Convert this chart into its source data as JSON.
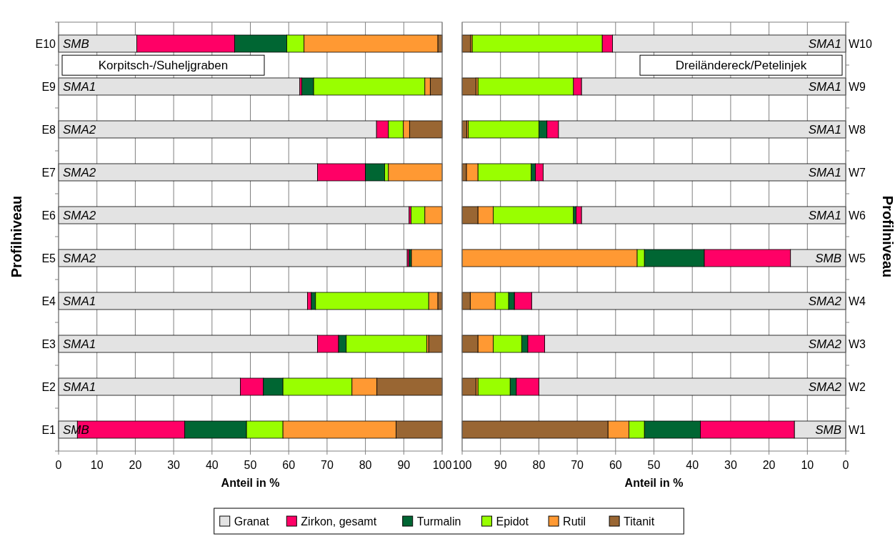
{
  "chart_data": [
    {
      "type": "bar",
      "orientation": "horizontal",
      "stacked": true,
      "categories": [
        "E10",
        "E9",
        "E8",
        "E7",
        "E6",
        "E5",
        "E4",
        "E3",
        "E2",
        "E1"
      ],
      "series": [
        {
          "name": "Granat",
          "color": "#e3e3e3",
          "values": [
            20.4,
            62.9,
            82.9,
            67.5,
            91.4,
            90.9,
            64.9,
            67.5,
            47.4,
            4.9
          ]
        },
        {
          "name": "Zirkon, gesamt",
          "color": "#ff0066",
          "values": [
            25.5,
            0.5,
            3.1,
            12.5,
            0.5,
            0.5,
            1.0,
            5.5,
            6.0,
            28.0
          ]
        },
        {
          "name": "Turmalin",
          "color": "#006633",
          "values": [
            13.6,
            3.1,
            0,
            5.0,
            0,
            0.6,
            1.1,
            2.0,
            5.1,
            16.1
          ]
        },
        {
          "name": "Epidot",
          "color": "#99ff00",
          "values": [
            4.5,
            29.0,
            3.9,
            1.0,
            3.6,
            0,
            29.5,
            21.0,
            18.0,
            9.5
          ]
        },
        {
          "name": "Rutil",
          "color": "#ff9933",
          "values": [
            34.9,
            1.4,
            1.6,
            14.0,
            4.5,
            8.0,
            2.4,
            0.5,
            6.5,
            29.5
          ]
        },
        {
          "name": "Titanit",
          "color": "#996633",
          "values": [
            1.1,
            3.1,
            8.5,
            0,
            0,
            0,
            1.1,
            3.5,
            17.0,
            12.0
          ]
        }
      ],
      "xlim": [
        0,
        100
      ],
      "xticks": [
        0,
        10,
        20,
        30,
        40,
        50,
        60,
        70,
        80,
        90,
        100
      ],
      "xlabel": "Anteil in %",
      "ylabel": "Profilniveau",
      "grid": "x",
      "legend": "bottom",
      "annotations": [
        "Korpitsch-/Suheljgraben",
        "SMB",
        "SMA1",
        "SMA2",
        "SMA2",
        "SMA2",
        "SMA2",
        "SMA1",
        "SMA1",
        "SMA1",
        "SMB"
      ]
    },
    {
      "type": "bar",
      "orientation": "horizontal",
      "stacked": true,
      "categories": [
        "W10",
        "W9",
        "W8",
        "W7",
        "W6",
        "W5",
        "W4",
        "W3",
        "W2",
        "W1"
      ],
      "series": [
        {
          "name": "Granat",
          "color": "#e3e3e3",
          "values": [
            60.8,
            68.9,
            74.9,
            78.9,
            68.9,
            14.4,
            81.9,
            78.5,
            80.0,
            13.4
          ]
        },
        {
          "name": "Zirkon, gesamt",
          "color": "#ff0066",
          "values": [
            2.7,
            2.1,
            3.0,
            2.0,
            1.4,
            22.5,
            4.5,
            4.4,
            5.9,
            24.5
          ]
        },
        {
          "name": "Turmalin",
          "color": "#006633",
          "values": [
            0,
            0,
            2.1,
            1.1,
            0.7,
            15.6,
            1.5,
            1.6,
            1.6,
            14.6
          ]
        },
        {
          "name": "Epidot",
          "color": "#99ff00",
          "values": [
            33.9,
            24.9,
            18.4,
            13.9,
            20.9,
            1.9,
            3.5,
            7.4,
            8.4,
            4.0
          ]
        },
        {
          "name": "Rutil",
          "color": "#ff9933",
          "values": [
            0.4,
            0.5,
            0.4,
            3.0,
            4.0,
            45.6,
            6.5,
            4.0,
            0.5,
            5.5
          ]
        },
        {
          "name": "Titanit",
          "color": "#996633",
          "values": [
            2.2,
            3.6,
            1.2,
            1.1,
            4.1,
            0,
            2.1,
            4.1,
            3.6,
            38.0
          ]
        }
      ],
      "xlim": [
        100,
        0
      ],
      "xticks": [
        100,
        90,
        80,
        70,
        60,
        50,
        40,
        30,
        20,
        10,
        0
      ],
      "xlabel": "Anteil in %",
      "ylabel": "Profilniveau",
      "grid": "x",
      "annotations": [
        "Dreiländereck/Petelinjek",
        "SMA1",
        "SMA1",
        "SMA1",
        "SMA1",
        "SMA1",
        "SMB",
        "SMA2",
        "SMA2",
        "SMA2",
        "SMB"
      ]
    }
  ]
}
